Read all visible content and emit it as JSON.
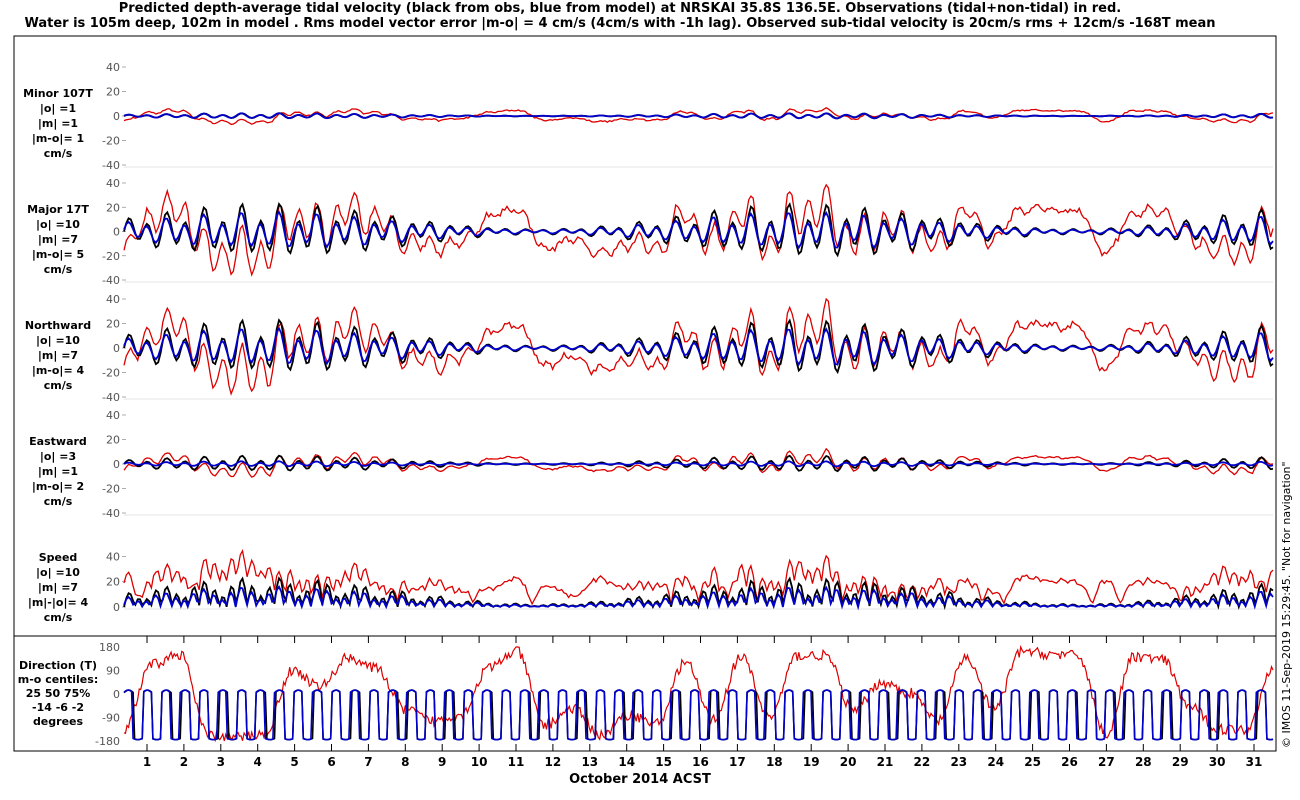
{
  "title_line1": "Predicted depth-average tidal velocity (black from obs, blue from model) at NRSKAI 35.8S 136.5E. Observations (tidal+non-tidal) in red.",
  "title_line2": "Water is 105m deep, 102m in model . Rms model vector error |m-o| = 4 cm/s (4cm/s with -1h lag). Observed sub-tidal velocity is 20cm/s rms + 12cm/s -168T mean",
  "xlabel": "October 2014 ACST",
  "credit": "© IMOS 11-Sep-2019 15:29:45. \"Not for navigation\"",
  "colors": {
    "observed_tidal": "#000000",
    "model": "#0000cc",
    "observations": "#dd0000"
  },
  "chart_data": [
    {
      "type": "line",
      "panel": "Minor 107T",
      "label_lines": [
        "Minor 107T",
        "|o| =1",
        "|m| =1",
        "|m-o|= 1",
        "cm/s"
      ],
      "ylim": [
        -40,
        40
      ],
      "yticks": [
        "40",
        "20",
        "0",
        "-20",
        "-40"
      ],
      "x_days": [
        1,
        31
      ],
      "series": [
        {
          "role": "obs_tidal",
          "amplitude": 1,
          "subtidal_amp": 0
        },
        {
          "role": "model",
          "amplitude": 1,
          "subtidal_amp": 0
        },
        {
          "role": "observed",
          "amplitude": 1,
          "subtidal_amp": 5
        }
      ]
    },
    {
      "type": "line",
      "panel": "Major 17T",
      "label_lines": [
        "Major 17T",
        "|o| =10",
        "|m| =7",
        "|m-o|= 5",
        "cm/s"
      ],
      "ylim": [
        -40,
        40
      ],
      "yticks": [
        "40",
        "20",
        "0",
        "-20",
        "-40"
      ],
      "x_days": [
        1,
        31
      ],
      "series": [
        {
          "role": "obs_tidal",
          "amplitude": 10,
          "subtidal_amp": 0
        },
        {
          "role": "model",
          "amplitude": 7,
          "subtidal_amp": 0
        },
        {
          "role": "observed",
          "amplitude": 10,
          "subtidal_amp": 20
        }
      ]
    },
    {
      "type": "line",
      "panel": "Northward",
      "label_lines": [
        "Northward",
        "|o| =10",
        "|m| =7",
        "|m-o|= 4",
        "cm/s"
      ],
      "ylim": [
        -40,
        40
      ],
      "yticks": [
        "40",
        "20",
        "0",
        "-20",
        "-40"
      ],
      "x_days": [
        1,
        31
      ],
      "series": [
        {
          "role": "obs_tidal",
          "amplitude": 10,
          "subtidal_amp": 0
        },
        {
          "role": "model",
          "amplitude": 7,
          "subtidal_amp": 0
        },
        {
          "role": "observed",
          "amplitude": 10,
          "subtidal_amp": 20
        }
      ]
    },
    {
      "type": "line",
      "panel": "Eastward",
      "label_lines": [
        "Eastward",
        "|o| =3",
        "|m| =1",
        "|m-o|= 2",
        "cm/s"
      ],
      "ylim": [
        -40,
        40
      ],
      "yticks": [
        "40",
        "20",
        "0",
        "-20",
        "-40"
      ],
      "x_days": [
        1,
        31
      ],
      "series": [
        {
          "role": "obs_tidal",
          "amplitude": 3,
          "subtidal_amp": 0
        },
        {
          "role": "model",
          "amplitude": 1,
          "subtidal_amp": 0
        },
        {
          "role": "observed",
          "amplitude": 3,
          "subtidal_amp": 6
        }
      ]
    },
    {
      "type": "line",
      "panel": "Speed",
      "label_lines": [
        "Speed",
        "|o| =10",
        "|m| =7",
        "|m|-|o|= 4",
        "cm/s"
      ],
      "ylim": [
        0,
        60
      ],
      "yticks": [
        "40",
        "20",
        "0"
      ],
      "x_days": [
        1,
        31
      ],
      "series": [
        {
          "role": "obs_tidal",
          "amplitude": 10,
          "subtidal_amp": 0
        },
        {
          "role": "model",
          "amplitude": 7,
          "subtidal_amp": 0
        },
        {
          "role": "observed",
          "amplitude": 10,
          "subtidal_amp": 20
        }
      ]
    },
    {
      "type": "line",
      "panel": "Direction (T)",
      "label_lines": [
        "Direction (T)",
        "m-o centiles:",
        "25  50  75%",
        " -14  -6  -2",
        "degrees"
      ],
      "ylim": [
        -180,
        180
      ],
      "yticks": [
        "180",
        "90",
        "0",
        "-90",
        "-180"
      ],
      "x_days": [
        1,
        31
      ],
      "series": [
        {
          "role": "obs_tidal"
        },
        {
          "role": "model"
        },
        {
          "role": "observed"
        }
      ]
    }
  ],
  "x_ticks": [
    "1",
    "2",
    "3",
    "4",
    "5",
    "6",
    "7",
    "8",
    "9",
    "10",
    "11",
    "12",
    "13",
    "14",
    "15",
    "16",
    "17",
    "18",
    "19",
    "20",
    "21",
    "22",
    "23",
    "24",
    "25",
    "26",
    "27",
    "28",
    "29",
    "30",
    "31"
  ]
}
